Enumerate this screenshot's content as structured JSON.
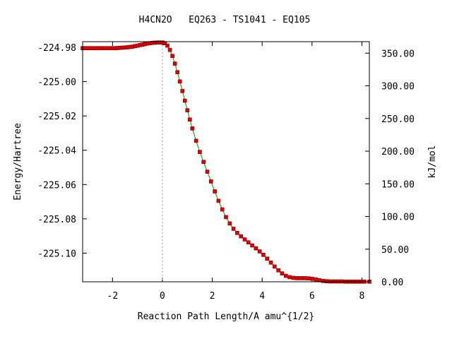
{
  "chart_data": {
    "type": "line",
    "title": "H4CN2O   EQ263 - TS1041 - EQ105",
    "xlabel": "Reaction Path Length/A amu^{1/2}",
    "ylabel": "Energy/Hartree",
    "y2label": "kJ/mol",
    "xlim": [
      -3.2,
      8.3
    ],
    "ylim": [
      -225.1167,
      -224.9767
    ],
    "y2lim": [
      0.0,
      367.6
    ],
    "x_ticks": [
      -2,
      0,
      2,
      4,
      6,
      8
    ],
    "x_tick_labels": [
      "-2",
      "0",
      "2",
      "4",
      "6",
      "8"
    ],
    "y_ticks": [
      -224.98,
      -225.0,
      -225.02,
      -225.04,
      -225.06,
      -225.08,
      -225.1
    ],
    "y_tick_labels": [
      "-224.98",
      "-225.00",
      "-225.02",
      "-225.04",
      "-225.06",
      "-225.08",
      "-225.10"
    ],
    "y2_ticks": [
      0,
      50,
      100,
      150,
      200,
      250,
      300,
      350
    ],
    "y2_tick_labels": [
      "0.00",
      "50.00",
      "100.00",
      "150.00",
      "200.00",
      "250.00",
      "300.00",
      "350.00"
    ],
    "ts_marker_x": 0.0,
    "grid": false,
    "colors": {
      "line": "#00a000",
      "marker": "#e00000",
      "ts_line": "#a0a0a0"
    },
    "series": [
      {
        "x": [
          -3.2,
          -3.1,
          -3.0,
          -2.9,
          -2.8,
          -2.7,
          -2.6,
          -2.5,
          -2.4,
          -2.3,
          -2.2,
          -2.1,
          -2.0,
          -1.9,
          -1.8,
          -1.7,
          -1.6,
          -1.5,
          -1.4,
          -1.3,
          -1.2,
          -1.1,
          -1.0,
          -0.9,
          -0.8,
          -0.7,
          -0.6,
          -0.5,
          -0.4,
          -0.3,
          -0.2,
          -0.1,
          0.0,
          0.1,
          0.2,
          0.3,
          0.4,
          0.5,
          0.6,
          0.7,
          0.8,
          0.9,
          1.0,
          1.1,
          1.2,
          1.35,
          1.5,
          1.65,
          1.8,
          1.95,
          2.1,
          2.25,
          2.4,
          2.55,
          2.7,
          2.85,
          3.0,
          3.15,
          3.3,
          3.45,
          3.6,
          3.75,
          3.9,
          4.05,
          4.2,
          4.35,
          4.5,
          4.65,
          4.8,
          4.95,
          5.1,
          5.25,
          5.4,
          5.55,
          5.7,
          5.85,
          6.0,
          6.15,
          6.3,
          6.45,
          6.6,
          6.75,
          6.9,
          7.05,
          7.2,
          7.35,
          7.5,
          7.65,
          7.8,
          7.95,
          8.1,
          8.3
        ],
        "y": [
          -224.9805,
          -224.9805,
          -224.9805,
          -224.9805,
          -224.9805,
          -224.9805,
          -224.9805,
          -224.9805,
          -224.9805,
          -224.9805,
          -224.9805,
          -224.9805,
          -224.9805,
          -224.9805,
          -224.9804,
          -224.9803,
          -224.9802,
          -224.9801,
          -224.98,
          -224.9798,
          -224.9796,
          -224.9793,
          -224.979,
          -224.9787,
          -224.9784,
          -224.9781,
          -224.9778,
          -224.9776,
          -224.9774,
          -224.9773,
          -224.9772,
          -224.9772,
          -224.9772,
          -224.9776,
          -224.979,
          -224.9815,
          -224.985,
          -224.9895,
          -224.9945,
          -224.9999,
          -225.0055,
          -225.0111,
          -225.0167,
          -225.0221,
          -225.0273,
          -225.0345,
          -225.041,
          -225.0468,
          -225.0525,
          -225.0582,
          -225.064,
          -225.0695,
          -225.0745,
          -225.079,
          -225.0827,
          -225.0858,
          -225.0882,
          -225.0902,
          -225.092,
          -225.0937,
          -225.0955,
          -225.0972,
          -225.099,
          -225.101,
          -225.1032,
          -225.1055,
          -225.1078,
          -225.11,
          -225.1118,
          -225.1132,
          -225.114,
          -225.1144,
          -225.1146,
          -225.1146,
          -225.1146,
          -225.1147,
          -225.1149,
          -225.1153,
          -225.1158,
          -225.1162,
          -225.1164,
          -225.1165,
          -225.1165,
          -225.1165,
          -225.1165,
          -225.1166,
          -225.1166,
          -225.1166,
          -225.1166,
          -225.1166,
          -225.1166,
          -225.1166
        ]
      }
    ]
  }
}
